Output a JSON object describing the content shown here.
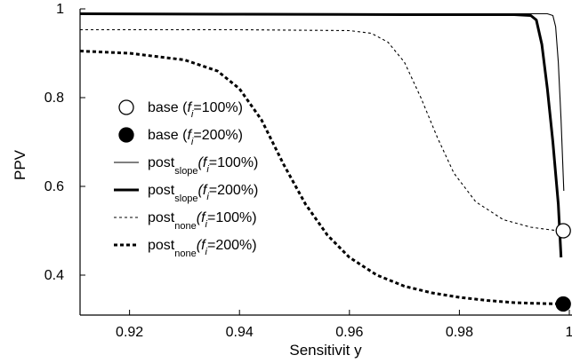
{
  "chart_data": {
    "type": "line",
    "title": "",
    "xlabel": "Sensitivit  y",
    "ylabel": "PPV",
    "xlim": [
      0.911,
      1.0
    ],
    "ylim": [
      0.31,
      1.0
    ],
    "x_ticks": [
      {
        "value": 0.92,
        "label": "0.92"
      },
      {
        "value": 0.94,
        "label": "0.94"
      },
      {
        "value": 0.96,
        "label": "0.96"
      },
      {
        "value": 0.98,
        "label": "0.98"
      },
      {
        "value": 1.0,
        "label": "1"
      }
    ],
    "y_ticks": [
      {
        "value": 0.4,
        "label": "0.4"
      },
      {
        "value": 0.6,
        "label": "0.6"
      },
      {
        "value": 0.8,
        "label": "0.8"
      },
      {
        "value": 1.0,
        "label": "1"
      }
    ],
    "grid": false,
    "legend": {
      "placement": "center-left",
      "entries": [
        {
          "key": "base100",
          "marker": "open-circle",
          "label_main": "base (",
          "label_it": "f",
          "label_sub": "i",
          "label_tail": "=100%)"
        },
        {
          "key": "base200",
          "marker": "filled-circle",
          "label_main": "base (",
          "label_it": "f",
          "label_sub": "i",
          "label_tail": "=200%)"
        },
        {
          "key": "slope100",
          "marker": "thin-solid",
          "label_main": "post",
          "label_sub": "slope",
          "label_it": "(f",
          "label_sub2": "i",
          "label_tail": "=100%)"
        },
        {
          "key": "slope200",
          "marker": "thick-solid",
          "label_main": "post",
          "label_sub": "slope",
          "label_it": "(f",
          "label_sub2": "i",
          "label_tail": "=200%)"
        },
        {
          "key": "none100",
          "marker": "thin-dashed",
          "label_main": "post",
          "label_sub": "none",
          "label_it": "(f",
          "label_sub2": "i",
          "label_tail": "=100%)"
        },
        {
          "key": "none200",
          "marker": "thick-dashed",
          "label_main": "post",
          "label_sub": "none",
          "label_it": "(f",
          "label_sub2": "i",
          "label_tail": "=200%)"
        }
      ]
    },
    "series": [
      {
        "key": "slope100",
        "style": "thin-solid",
        "x": [
          0.911,
          0.93,
          0.95,
          0.97,
          0.985,
          0.993,
          0.996,
          0.997,
          0.9975,
          0.998,
          0.9985,
          0.999
        ],
        "y": [
          0.99,
          0.99,
          0.989,
          0.989,
          0.989,
          0.989,
          0.989,
          0.985,
          0.96,
          0.88,
          0.75,
          0.59
        ]
      },
      {
        "key": "slope200",
        "style": "thick-solid",
        "x": [
          0.911,
          0.94,
          0.97,
          0.99,
          0.993,
          0.994,
          0.995,
          0.996,
          0.997,
          0.998,
          0.9985
        ],
        "y": [
          0.989,
          0.988,
          0.987,
          0.987,
          0.985,
          0.975,
          0.92,
          0.82,
          0.7,
          0.56,
          0.44
        ]
      },
      {
        "key": "none100",
        "style": "thin-dashed",
        "x": [
          0.911,
          0.94,
          0.96,
          0.964,
          0.967,
          0.97,
          0.973,
          0.976,
          0.979,
          0.983,
          0.988,
          0.993,
          0.996,
          0.998,
          0.999
        ],
        "y": [
          0.953,
          0.953,
          0.951,
          0.945,
          0.925,
          0.88,
          0.8,
          0.71,
          0.63,
          0.565,
          0.525,
          0.508,
          0.503,
          0.5,
          0.5
        ]
      },
      {
        "key": "none200",
        "style": "thick-dashed",
        "x": [
          0.911,
          0.92,
          0.93,
          0.936,
          0.94,
          0.944,
          0.948,
          0.952,
          0.956,
          0.96,
          0.965,
          0.97,
          0.975,
          0.98,
          0.985,
          0.99,
          0.995,
          0.999
        ],
        "y": [
          0.905,
          0.9,
          0.885,
          0.86,
          0.82,
          0.75,
          0.65,
          0.56,
          0.49,
          0.44,
          0.4,
          0.375,
          0.36,
          0.35,
          0.343,
          0.338,
          0.336,
          0.335
        ]
      }
    ],
    "points": [
      {
        "key": "base100",
        "marker": "open-circle",
        "x": 0.9989,
        "y": 0.5
      },
      {
        "key": "base200",
        "marker": "filled-circle",
        "x": 0.9989,
        "y": 0.335
      }
    ]
  }
}
